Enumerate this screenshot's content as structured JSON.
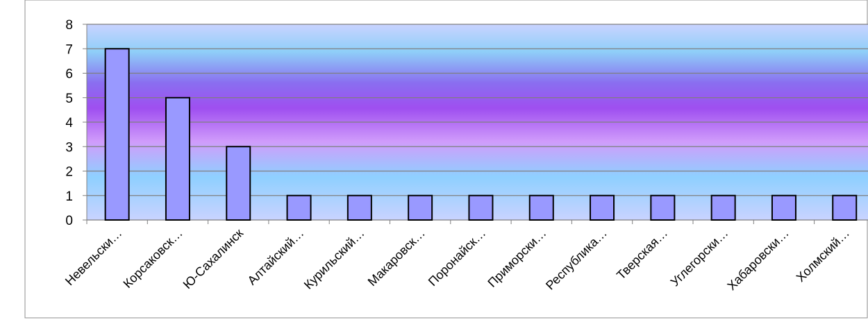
{
  "chart_data": {
    "type": "bar",
    "title": "",
    "xlabel": "",
    "ylabel": "",
    "categories": [
      "Невельски…",
      "Корсаковск…",
      "Ю-Сахалинск",
      "Алтайский…",
      "Курильский…",
      "Макаровск…",
      "Поронайск…",
      "Приморски…",
      "Республика…",
      "Тверская…",
      "Углегорски…",
      "Хабаровски…",
      "Холмский…"
    ],
    "values": [
      7,
      5,
      3,
      1,
      1,
      1,
      1,
      1,
      1,
      1,
      1,
      1,
      1
    ],
    "ylim": [
      0,
      8
    ],
    "yticks": [
      0,
      1,
      2,
      3,
      4,
      5,
      6,
      7,
      8
    ],
    "grid": true,
    "legend": "none",
    "colors": {
      "bar_fill": "#9999ff",
      "bar_stroke": "#000000",
      "gridline": "#7f7f7f",
      "plot_gradient_edge": "#c8d4ff",
      "plot_gradient_light_blue": "#8fd0ff",
      "plot_gradient_center": "#a257f2",
      "plot_gradient_pink": "#d8a0ff"
    }
  }
}
